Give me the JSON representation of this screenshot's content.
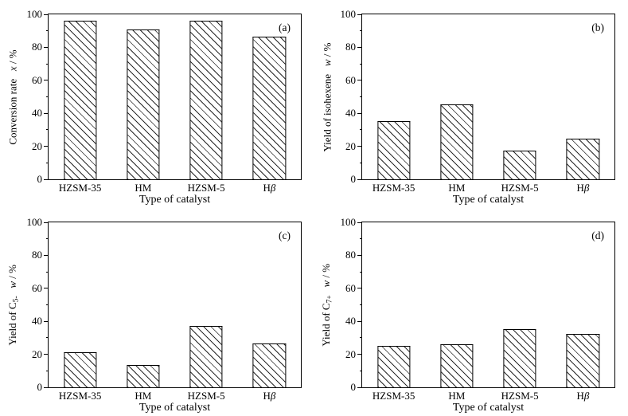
{
  "figure": {
    "background": "#ffffff",
    "text_color": "#000000"
  },
  "colors": {
    "axis": "#000000",
    "bar_fill": "#ffffff",
    "bar_edge": "#000000",
    "hatch_line": "#2a2a2a"
  },
  "chart_data": [
    {
      "id": "a",
      "type": "bar",
      "panel_label": "(a)",
      "xlabel": "Type of catalyst",
      "ylabel": "Conversion rate x / %",
      "ylabel_segments": [
        {
          "text": "Conversion rate"
        },
        {
          "text": "   "
        },
        {
          "text": "x",
          "italic": true
        },
        {
          "text": " / %"
        }
      ],
      "categories": [
        "HZSM-35",
        "HM",
        "HZSM-5",
        "Hβ"
      ],
      "values": [
        96,
        91,
        96,
        86.5
      ],
      "ylim": [
        0,
        100
      ],
      "ytick_step": 20,
      "ytick_minor_step": 10,
      "grid": false,
      "hatch": "diagonal-down",
      "legend": null
    },
    {
      "id": "b",
      "type": "bar",
      "panel_label": "(b)",
      "xlabel": "Type of catalyst",
      "ylabel": "Yield of isohexene w / %",
      "ylabel_segments": [
        {
          "text": "Yield of isohexene"
        },
        {
          "text": "   "
        },
        {
          "text": "w",
          "italic": true
        },
        {
          "text": " / %"
        }
      ],
      "categories": [
        "HZSM-35",
        "HM",
        "HZSM-5",
        "Hβ"
      ],
      "values": [
        35.5,
        45.5,
        17.5,
        24.5
      ],
      "ylim": [
        0,
        100
      ],
      "ytick_step": 20,
      "ytick_minor_step": 10,
      "grid": false,
      "hatch": "diagonal-down",
      "legend": null
    },
    {
      "id": "c",
      "type": "bar",
      "panel_label": "(c)",
      "xlabel": "Type of catalyst",
      "ylabel": "Yield of C5- w / %",
      "ylabel_segments": [
        {
          "text": "Yield of C"
        },
        {
          "text": "5-",
          "sub": true
        },
        {
          "text": "   "
        },
        {
          "text": "w",
          "italic": true
        },
        {
          "text": " / %"
        }
      ],
      "categories": [
        "HZSM-35",
        "HM",
        "HZSM-5",
        "Hβ"
      ],
      "values": [
        21.5,
        13.5,
        37,
        26.5
      ],
      "ylim": [
        0,
        100
      ],
      "ytick_step": 20,
      "ytick_minor_step": 10,
      "grid": false,
      "hatch": "diagonal-down",
      "legend": null
    },
    {
      "id": "d",
      "type": "bar",
      "panel_label": "(d)",
      "xlabel": "Type of catalyst",
      "ylabel": "Yield of C7+ w / %",
      "ylabel_segments": [
        {
          "text": "Yield of C"
        },
        {
          "text": "7+",
          "sub": true
        },
        {
          "text": "   "
        },
        {
          "text": "w",
          "italic": true
        },
        {
          "text": " / %"
        }
      ],
      "categories": [
        "HZSM-35",
        "HM",
        "HZSM-5",
        "Hβ"
      ],
      "values": [
        25,
        26,
        35.5,
        32.5
      ],
      "ylim": [
        0,
        100
      ],
      "ytick_step": 20,
      "ytick_minor_step": 10,
      "grid": false,
      "hatch": "diagonal-down",
      "legend": null
    }
  ]
}
